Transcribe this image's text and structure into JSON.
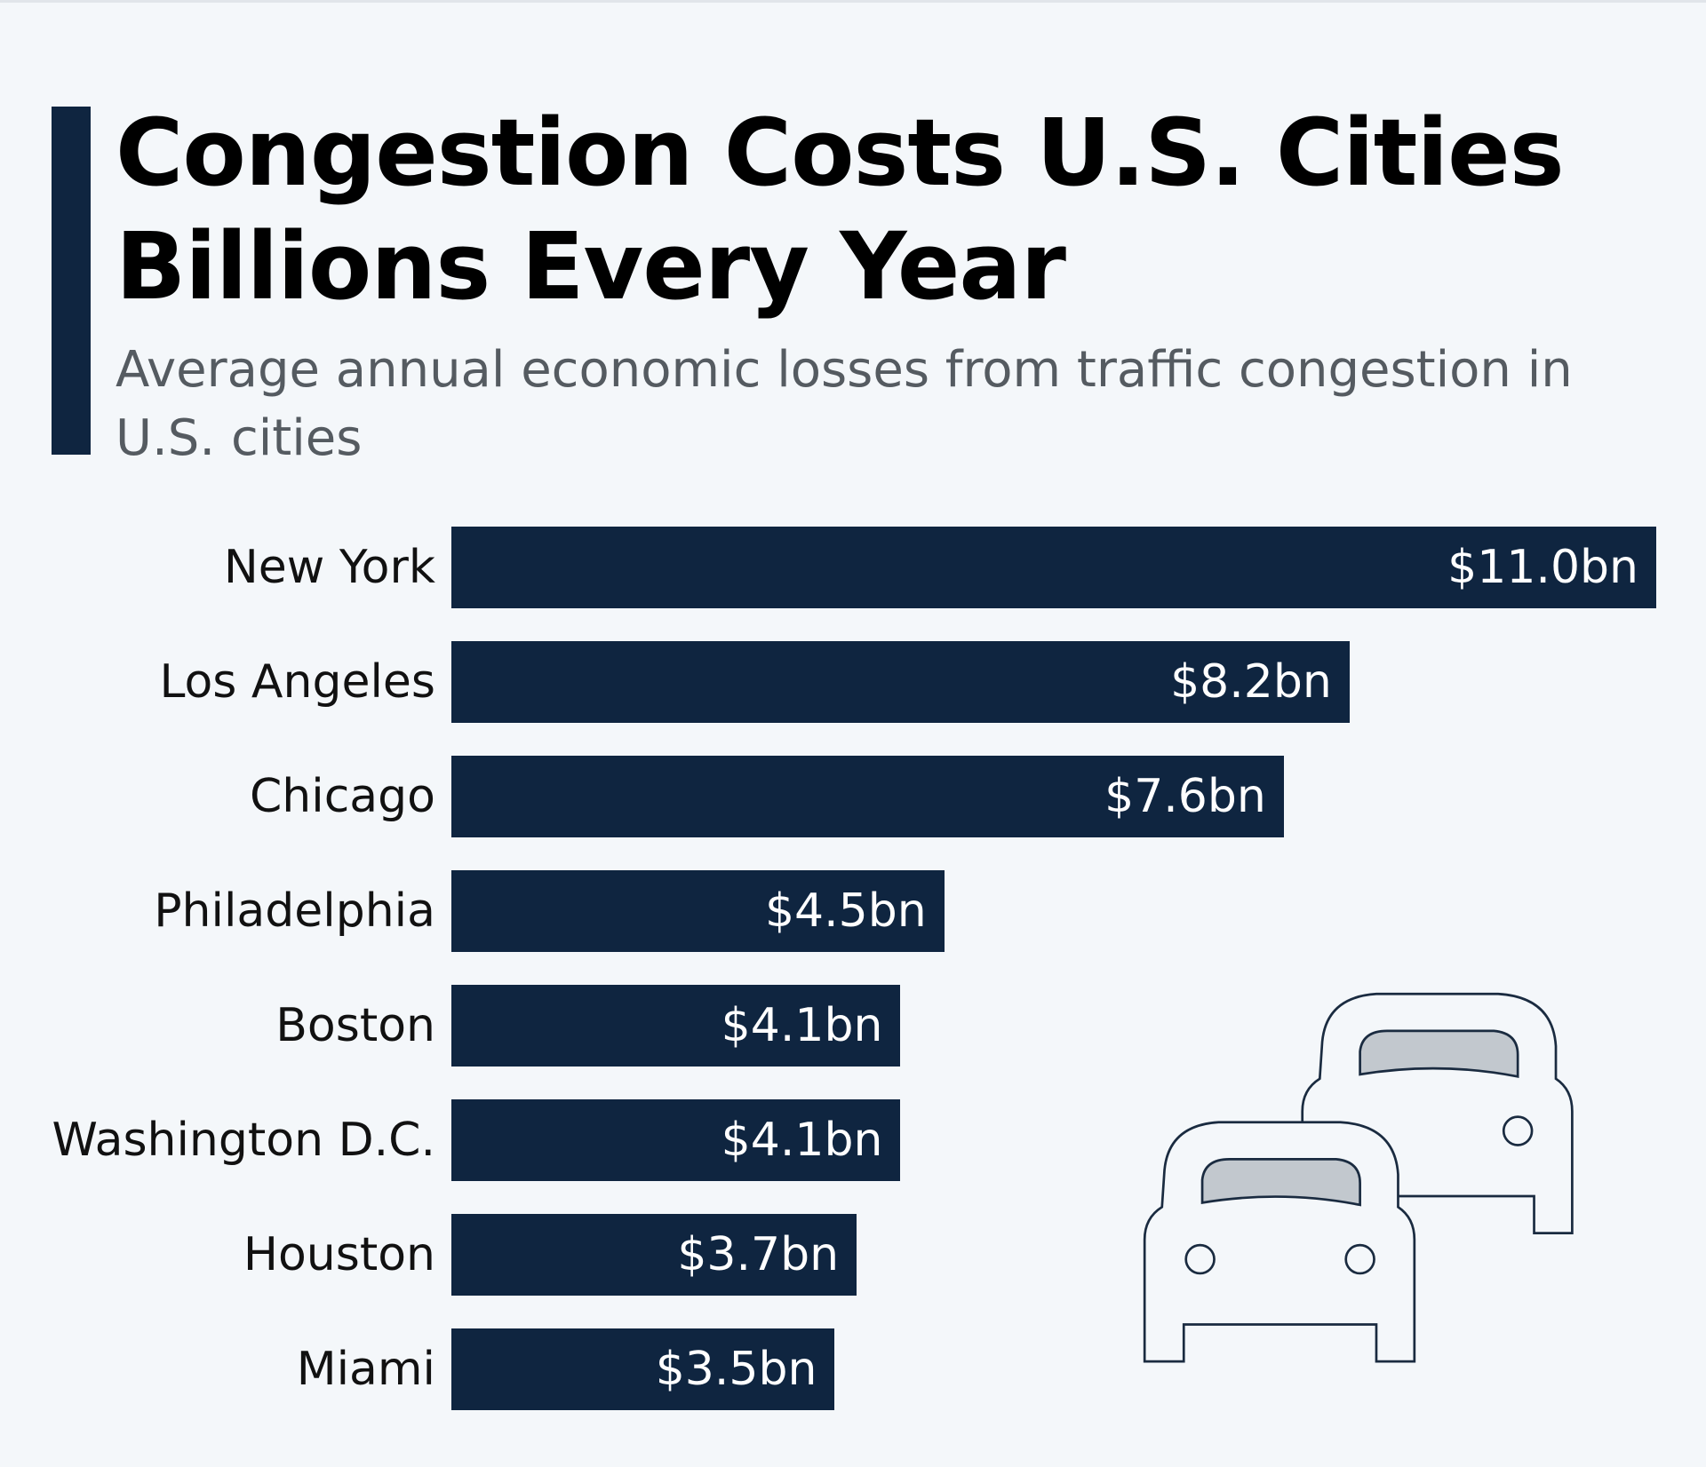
{
  "header": {
    "title": "Congestion Costs U.S. Cities Billions Every Year",
    "subtitle": "Average annual economic losses from traffic congestion in U.S. cities"
  },
  "chart_data": {
    "type": "bar",
    "orientation": "horizontal",
    "title": "Congestion Costs U.S. Cities Billions Every Year",
    "subtitle": "Average annual economic losses from traffic congestion in U.S. cities",
    "categories": [
      "New York",
      "Los Angeles",
      "Chicago",
      "Philadelphia",
      "Boston",
      "Washington D.C.",
      "Houston",
      "Miami"
    ],
    "values": [
      11.0,
      8.2,
      7.6,
      4.5,
      4.1,
      4.1,
      3.7,
      3.5
    ],
    "data_labels": [
      "$11.0bn",
      "$8.2bn",
      "$7.6bn",
      "$4.5bn",
      "$4.1bn",
      "$4.1bn",
      "$3.7bn",
      "$3.5bn"
    ],
    "unit": "USD billions",
    "xlim": [
      0,
      11.0
    ],
    "grid": false,
    "bar_color": "#0f2540"
  },
  "decoration": {
    "icon": "cars-traffic-icon",
    "accent_color": "#0f2540",
    "background": "#f4f7fa"
  }
}
